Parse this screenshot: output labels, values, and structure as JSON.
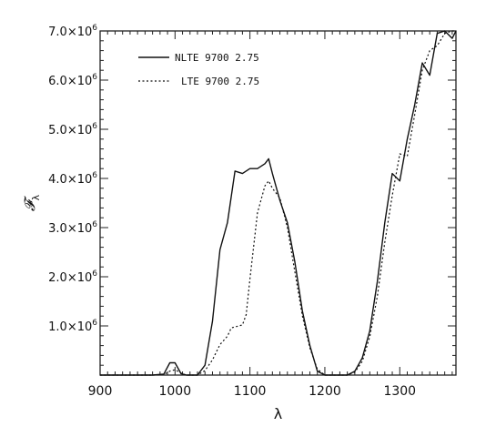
{
  "chart_data": {
    "type": "line",
    "title": "",
    "xlabel": "λ",
    "ylabel": "𝓕",
    "ylabel_subscript": "λ",
    "xlim": [
      900,
      1375
    ],
    "ylim": [
      0,
      7000000
    ],
    "x_ticks": [
      900,
      1000,
      1100,
      1200,
      1300
    ],
    "x_tick_labels": [
      "900",
      "1000",
      "1100",
      "1200",
      "1300"
    ],
    "y_ticks": [
      1000000,
      2000000,
      3000000,
      4000000,
      5000000,
      6000000,
      7000000
    ],
    "y_tick_labels": [
      "1.0×10",
      "2.0×10",
      "3.0×10",
      "4.0×10",
      "5.0×10",
      "6.0×10",
      "7.0×10"
    ],
    "y_tick_exponent": "6",
    "grid": false,
    "legend_position": "top-left",
    "series": [
      {
        "name": "NLTE 9700 2.75",
        "style": "solid",
        "x": [
          900,
          970,
          985,
          993,
          1000,
          1008,
          1015,
          1030,
          1040,
          1050,
          1060,
          1070,
          1080,
          1090,
          1100,
          1110,
          1120,
          1125,
          1130,
          1140,
          1150,
          1160,
          1170,
          1180,
          1190,
          1200,
          1210,
          1220,
          1230,
          1240,
          1250,
          1260,
          1270,
          1280,
          1290,
          1300,
          1310,
          1320,
          1330,
          1340,
          1350,
          1360,
          1370,
          1375
        ],
        "y": [
          0,
          0,
          20000,
          250000,
          250000,
          30000,
          0,
          0,
          200000,
          1100000,
          2550000,
          3100000,
          4150000,
          4100000,
          4200000,
          4200000,
          4300000,
          4400000,
          4100000,
          3550000,
          3100000,
          2300000,
          1300000,
          600000,
          80000,
          0,
          0,
          0,
          0,
          80000,
          350000,
          900000,
          1900000,
          3100000,
          4100000,
          3950000,
          4800000,
          5500000,
          6350000,
          6100000,
          6950000,
          7000000,
          6850000,
          7000000
        ]
      },
      {
        "name": "LTE 9700 2.75",
        "style": "dotted",
        "x": [
          900,
          970,
          985,
          993,
          1000,
          1008,
          1015,
          1030,
          1040,
          1050,
          1060,
          1070,
          1075,
          1090,
          1095,
          1100,
          1110,
          1120,
          1125,
          1130,
          1140,
          1150,
          1160,
          1170,
          1180,
          1190,
          1200,
          1210,
          1220,
          1230,
          1240,
          1250,
          1260,
          1270,
          1280,
          1290,
          1300,
          1310,
          1320,
          1330,
          1340,
          1350,
          1360,
          1370,
          1375
        ],
        "y": [
          0,
          0,
          10000,
          80000,
          110000,
          40000,
          0,
          0,
          90000,
          310000,
          620000,
          790000,
          960000,
          1020000,
          1230000,
          1950000,
          3300000,
          3850000,
          3950000,
          3800000,
          3600000,
          3000000,
          2100000,
          1200000,
          550000,
          120000,
          0,
          0,
          0,
          0,
          60000,
          280000,
          780000,
          1600000,
          2700000,
          3650000,
          4500000,
          4450000,
          5300000,
          6200000,
          6600000,
          6700000,
          6950000,
          7000000,
          7000000
        ]
      }
    ]
  }
}
